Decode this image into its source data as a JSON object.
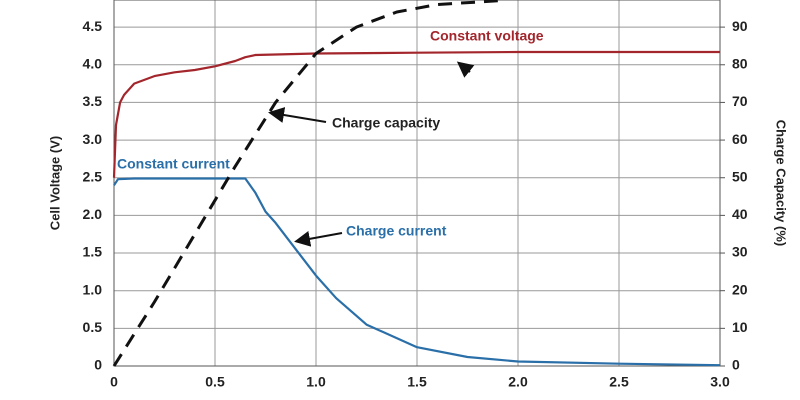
{
  "chart_data": {
    "type": "line",
    "y_label": "Cell Voltage (V)",
    "y2_label": "Charge Capacity (%)",
    "xlim": [
      0,
      3
    ],
    "ylim": [
      0,
      4.86
    ],
    "y2lim": [
      0,
      97.2
    ],
    "xticks": [
      0,
      0.5,
      {
        "value": 1,
        "label": "1.0"
      },
      1.5,
      {
        "value": 2,
        "label": "2.0"
      },
      2.5,
      {
        "value": 3,
        "label": "3.0"
      }
    ],
    "yticks": [
      0,
      0.5,
      {
        "value": 1,
        "label": "1.0"
      },
      1.5,
      {
        "value": 2,
        "label": "2.0"
      },
      2.5,
      {
        "value": 3,
        "label": "3.0"
      },
      3.5,
      {
        "value": 4,
        "label": "4.0"
      },
      4.5
    ],
    "y2ticks": [
      0,
      10,
      20,
      30,
      40,
      50,
      60,
      70,
      80,
      90
    ],
    "grid": true,
    "series": [
      {
        "color": "#a3262c",
        "dashed": false,
        "x": [
          0,
          0.01,
          0.03,
          0.05,
          0.1,
          0.2,
          0.3,
          0.4,
          0.5,
          0.6,
          0.65,
          0.7,
          1.0,
          1.5,
          2.0,
          2.5,
          3.0
        ],
        "values": [
          2.5,
          3.2,
          3.5,
          3.6,
          3.75,
          3.85,
          3.9,
          3.93,
          3.98,
          4.05,
          4.1,
          4.13,
          4.15,
          4.16,
          4.17,
          4.17,
          4.17
        ]
      },
      {
        "color": "#2a6fa8",
        "dashed": false,
        "x": [
          0,
          0.02,
          0.1,
          0.3,
          0.5,
          0.65,
          0.7,
          0.75,
          0.8,
          0.9,
          1.0,
          1.1,
          1.25,
          1.5,
          1.75,
          2.0,
          2.5,
          3.0
        ],
        "values": [
          2.4,
          2.48,
          2.49,
          2.49,
          2.49,
          2.49,
          2.3,
          2.05,
          1.9,
          1.55,
          1.2,
          0.9,
          0.55,
          0.25,
          0.12,
          0.06,
          0.03,
          0.01
        ]
      },
      {
        "color": "#111111",
        "dashed": true,
        "axis": "y2",
        "x": [
          0,
          0.2,
          0.4,
          0.6,
          0.8,
          1.0,
          1.2,
          1.4,
          1.6,
          1.9
        ],
        "values": [
          0,
          17,
          35,
          53,
          70,
          83,
          90,
          94,
          96,
          97
        ]
      }
    ],
    "annotations": [
      "Constant voltage",
      "Constant current",
      "Charge capacity",
      "Charge current"
    ]
  }
}
